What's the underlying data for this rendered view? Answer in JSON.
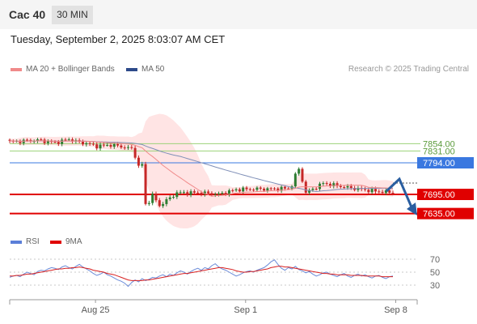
{
  "header": {
    "title": "Cac 40",
    "timeframe": "30 MIN"
  },
  "datetime": "Tuesday, September 2, 2025 8:03:07 AM CET",
  "legend": {
    "ma20": "MA 20 + Bollinger Bands",
    "ma50": "MA 50",
    "credit": "Research © 2025 Trading Central",
    "rsi": "RSI",
    "rsi_ma": "9MA"
  },
  "colors": {
    "candle_up": "#2e7d32",
    "candle_down": "#c62828",
    "ma20": "#f08a8a",
    "ma50": "#8090b8",
    "bollinger_fill": "#ffd9d9",
    "resistance": "#9bd27a",
    "pivot": "#3a78e0",
    "support": "#e00000",
    "rsi": "#6b8bd8",
    "rsi_ma": "#d82020"
  },
  "chart_data": [
    {
      "type": "candlestick",
      "price_axis": {
        "min": 7550,
        "max": 8000
      },
      "levels": [
        {
          "label": "7854.00",
          "value": 7854,
          "kind": "resistance"
        },
        {
          "label": "7831.00",
          "value": 7831,
          "kind": "resistance"
        },
        {
          "label": "7794.00",
          "value": 7794,
          "kind": "pivot"
        },
        {
          "label": "7695.00",
          "value": 7695,
          "kind": "support"
        },
        {
          "label": "7635.00",
          "value": 7635,
          "kind": "support"
        }
      ],
      "x_ticks": [
        "Aug 25",
        "Sep 1",
        "Sep 8"
      ],
      "x_axis_range": [
        "Aug 21",
        "Sep 9"
      ],
      "x_tick_dates": [
        "Aug 25",
        "Sep 1",
        "Sep 8"
      ],
      "series": [
        {
          "name": "MA 20",
          "role": "ma20"
        },
        {
          "name": "MA 50",
          "role": "ma50"
        }
      ],
      "forecast": "down from about 7712 toward 7635"
    },
    {
      "type": "line",
      "y_ticks": [
        70,
        50,
        30
      ],
      "ylim": [
        20,
        80
      ],
      "series": [
        {
          "name": "RSI",
          "role": "rsi",
          "values": [
            42,
            44,
            45,
            43,
            47,
            50,
            48,
            46,
            51,
            53,
            52,
            55,
            57,
            56,
            54,
            58,
            60,
            57,
            55,
            59,
            62,
            58,
            55,
            52,
            48,
            45,
            47,
            50,
            46,
            44,
            41,
            38,
            36,
            33,
            28,
            34,
            38,
            35,
            40,
            37,
            39,
            42,
            41,
            44,
            46,
            43,
            47,
            45,
            49,
            52,
            50,
            47,
            51,
            54,
            56,
            53,
            57,
            55,
            60,
            63,
            58,
            55,
            53,
            50,
            47,
            44,
            46,
            49,
            51,
            52,
            50,
            53,
            55,
            57,
            61,
            66,
            69,
            62,
            56,
            53,
            57,
            55,
            59,
            54,
            52,
            49,
            51,
            47,
            44,
            46,
            49,
            50,
            47,
            45,
            43,
            46,
            48,
            44,
            42,
            45,
            47,
            44,
            46,
            43,
            41,
            44,
            45,
            42,
            40,
            43,
            44
          ]
        },
        {
          "name": "9MA",
          "role": "rsi_ma",
          "values": [
            44,
            44,
            45,
            45,
            46,
            47,
            47,
            48,
            49,
            50,
            51,
            52,
            53,
            54,
            55,
            55,
            56,
            56,
            57,
            57,
            58,
            57,
            56,
            55,
            53,
            52,
            51,
            50,
            48,
            47,
            46,
            44,
            42,
            40,
            38,
            37,
            37,
            37,
            37,
            38,
            38,
            39,
            40,
            41,
            42,
            43,
            44,
            45,
            46,
            47,
            48,
            48,
            49,
            50,
            51,
            52,
            53,
            54,
            55,
            56,
            57,
            57,
            56,
            55,
            54,
            52,
            51,
            50,
            50,
            51,
            51,
            52,
            53,
            54,
            55,
            57,
            58,
            59,
            59,
            58,
            58,
            57,
            56,
            55,
            54,
            53,
            52,
            51,
            50,
            49,
            48,
            48,
            47,
            47,
            46,
            46,
            46,
            46,
            45,
            45,
            45,
            45,
            44,
            44,
            44,
            44,
            44,
            43,
            43,
            43,
            43
          ]
        }
      ]
    }
  ]
}
